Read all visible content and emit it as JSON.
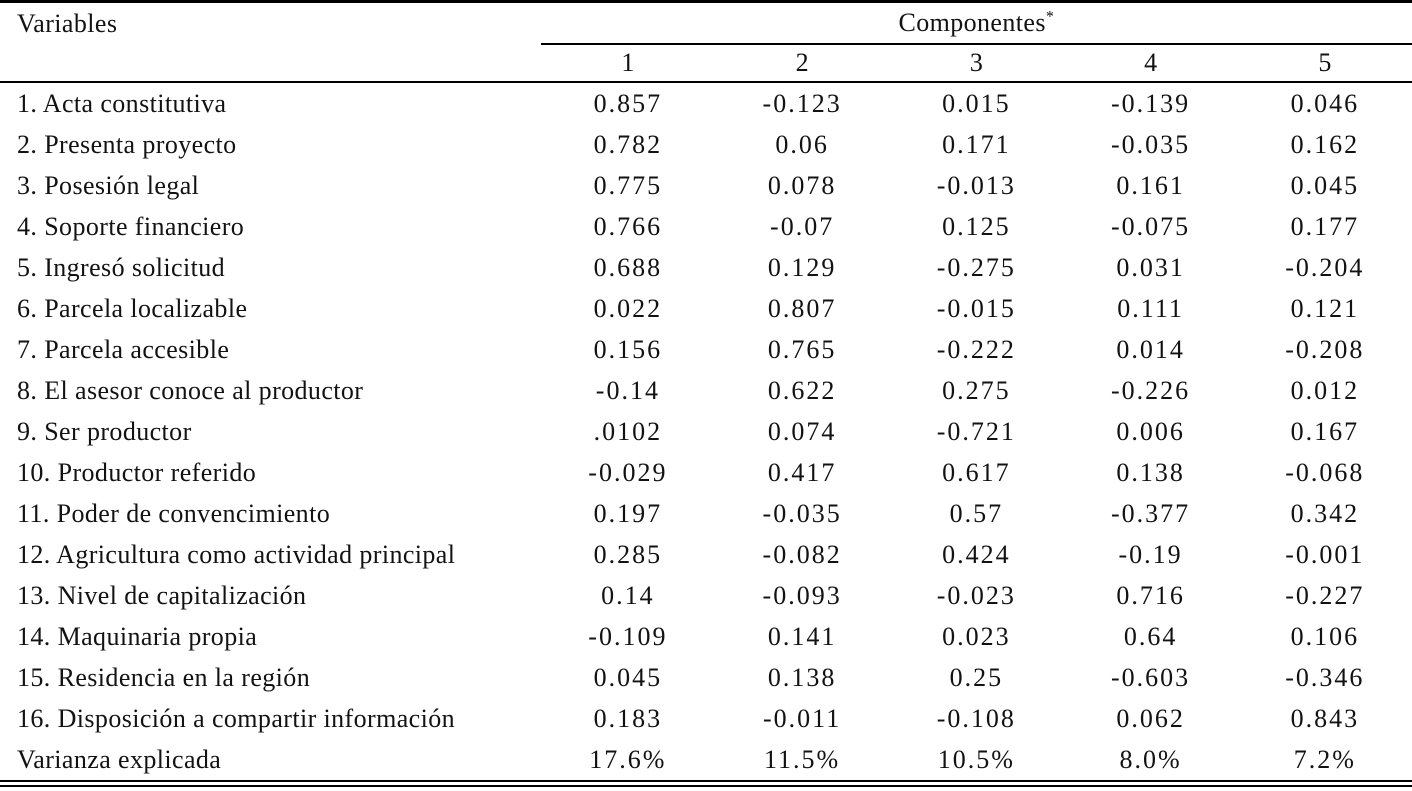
{
  "table": {
    "variables_header": "Variables",
    "components_header": "Componentes",
    "components_header_sup": "*",
    "component_columns": [
      "1",
      "2",
      "3",
      "4",
      "5"
    ],
    "rows": [
      {
        "label": "1. Acta constitutiva",
        "values": [
          "0.857",
          "-0.123",
          "0.015",
          "-0.139",
          "0.046"
        ]
      },
      {
        "label": "2. Presenta proyecto",
        "values": [
          "0.782",
          "0.06",
          "0.171",
          "-0.035",
          "0.162"
        ]
      },
      {
        "label": "3. Posesión legal",
        "values": [
          "0.775",
          "0.078",
          "-0.013",
          "0.161",
          "0.045"
        ]
      },
      {
        "label": "4. Soporte financiero",
        "values": [
          "0.766",
          "-0.07",
          "0.125",
          "-0.075",
          "0.177"
        ]
      },
      {
        "label": "5. Ingresó solicitud",
        "values": [
          "0.688",
          "0.129",
          "-0.275",
          "0.031",
          "-0.204"
        ]
      },
      {
        "label": "6. Parcela localizable",
        "values": [
          "0.022",
          "0.807",
          "-0.015",
          "0.111",
          "0.121"
        ]
      },
      {
        "label": "7. Parcela accesible",
        "values": [
          "0.156",
          "0.765",
          "-0.222",
          "0.014",
          "-0.208"
        ]
      },
      {
        "label": "8. El asesor conoce al productor",
        "values": [
          "-0.14",
          "0.622",
          "0.275",
          "-0.226",
          "0.012"
        ]
      },
      {
        "label": "9. Ser productor",
        "values": [
          ".0102",
          "0.074",
          "-0.721",
          "0.006",
          "0.167"
        ]
      },
      {
        "label": "10. Productor referido",
        "values": [
          "-0.029",
          "0.417",
          "0.617",
          "0.138",
          "-0.068"
        ]
      },
      {
        "label": "11. Poder de convencimiento",
        "values": [
          "0.197",
          "-0.035",
          "0.57",
          "-0.377",
          "0.342"
        ]
      },
      {
        "label": "12. Agricultura como actividad principal",
        "values": [
          "0.285",
          "-0.082",
          "0.424",
          "-0.19",
          "-0.001"
        ]
      },
      {
        "label": "13. Nivel de capitalización",
        "values": [
          "0.14",
          "-0.093",
          "-0.023",
          "0.716",
          "-0.227"
        ]
      },
      {
        "label": "14. Maquinaria propia",
        "values": [
          "-0.109",
          "0.141",
          "0.023",
          "0.64",
          "0.106"
        ]
      },
      {
        "label": "15. Residencia en la región",
        "values": [
          "0.045",
          "0.138",
          "0.25",
          "-0.603",
          "-0.346"
        ]
      },
      {
        "label": "16. Disposición a compartir información",
        "values": [
          "0.183",
          "-0.011",
          "-0.108",
          "0.062",
          "0.843"
        ]
      },
      {
        "label": "Varianza explicada",
        "values": [
          "17.6%",
          "11.5%",
          "10.5%",
          "8.0%",
          "7.2%"
        ]
      }
    ]
  },
  "colors": {
    "text": "#121212",
    "line": "#000000",
    "background": "#ffffff"
  }
}
